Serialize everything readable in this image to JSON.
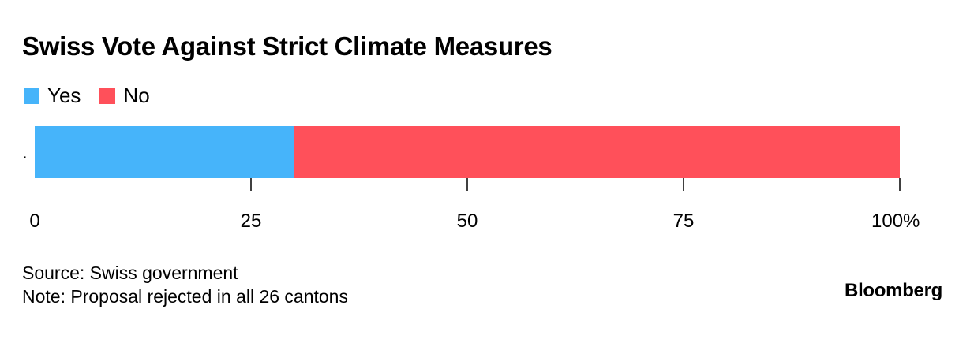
{
  "title": "Swiss Vote Against Strict Climate Measures",
  "legend": [
    {
      "label": "Yes",
      "color": "#46b4fa"
    },
    {
      "label": "No",
      "color": "#ff505a"
    }
  ],
  "chart_data": {
    "type": "bar",
    "orientation": "horizontal",
    "stacked": true,
    "categories": [
      "."
    ],
    "series": [
      {
        "name": "Yes",
        "values": [
          30
        ],
        "color": "#46b4fa"
      },
      {
        "name": "No",
        "values": [
          70
        ],
        "color": "#ff505a"
      }
    ],
    "xlim": [
      0,
      100
    ],
    "xticks": [
      0,
      25,
      50,
      75,
      100
    ],
    "xtick_labels": [
      "0",
      "25",
      "50",
      "75",
      "100%"
    ],
    "legend_position": "top-left",
    "grid": false
  },
  "footer": {
    "source": "Source: Swiss government",
    "note": "Note: Proposal rejected in all 26 cantons"
  },
  "brand": "Bloomberg"
}
